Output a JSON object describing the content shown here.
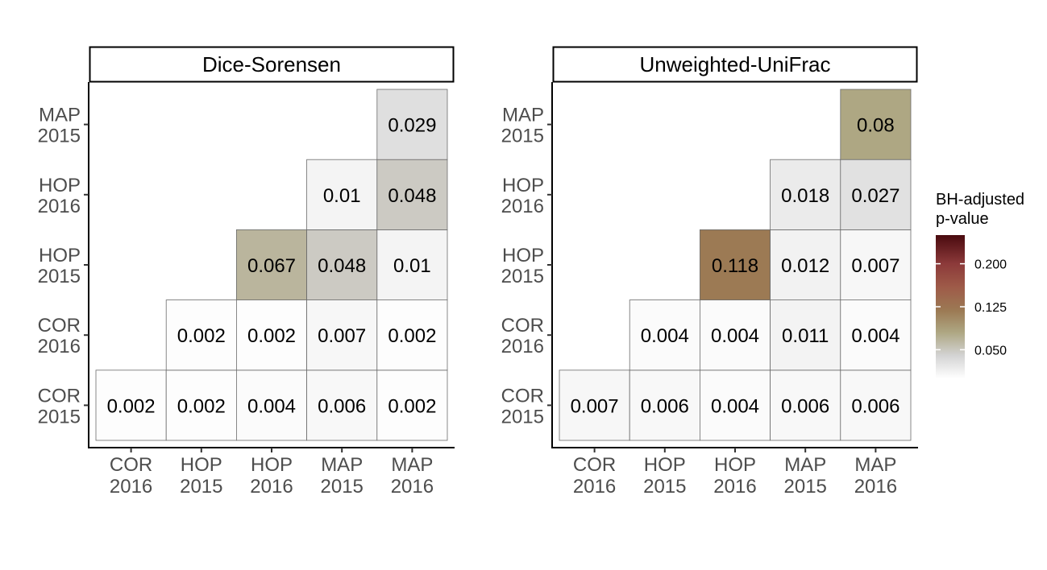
{
  "chart_data": {
    "type": "heatmap",
    "x_categories": [
      [
        "COR",
        "2016"
      ],
      [
        "HOP",
        "2015"
      ],
      [
        "HOP",
        "2016"
      ],
      [
        "MAP",
        "2015"
      ],
      [
        "MAP",
        "2016"
      ]
    ],
    "y_categories": [
      [
        "COR",
        "2015"
      ],
      [
        "COR",
        "2016"
      ],
      [
        "HOP",
        "2015"
      ],
      [
        "HOP",
        "2016"
      ],
      [
        "MAP",
        "2015"
      ]
    ],
    "panels": [
      {
        "title": "Dice-Sorensen",
        "cells": [
          {
            "x": 0,
            "y": 0,
            "value": 0.002
          },
          {
            "x": 1,
            "y": 0,
            "value": 0.002
          },
          {
            "x": 2,
            "y": 0,
            "value": 0.004
          },
          {
            "x": 3,
            "y": 0,
            "value": 0.006
          },
          {
            "x": 4,
            "y": 0,
            "value": 0.002
          },
          {
            "x": 1,
            "y": 1,
            "value": 0.002
          },
          {
            "x": 2,
            "y": 1,
            "value": 0.002
          },
          {
            "x": 3,
            "y": 1,
            "value": 0.007
          },
          {
            "x": 4,
            "y": 1,
            "value": 0.002
          },
          {
            "x": 2,
            "y": 2,
            "value": 0.067
          },
          {
            "x": 3,
            "y": 2,
            "value": 0.048
          },
          {
            "x": 4,
            "y": 2,
            "value": 0.01
          },
          {
            "x": 3,
            "y": 3,
            "value": 0.01
          },
          {
            "x": 4,
            "y": 3,
            "value": 0.048
          },
          {
            "x": 4,
            "y": 4,
            "value": 0.029
          }
        ]
      },
      {
        "title": "Unweighted-UniFrac",
        "cells": [
          {
            "x": 0,
            "y": 0,
            "value": 0.007
          },
          {
            "x": 1,
            "y": 0,
            "value": 0.006
          },
          {
            "x": 2,
            "y": 0,
            "value": 0.004
          },
          {
            "x": 3,
            "y": 0,
            "value": 0.006
          },
          {
            "x": 4,
            "y": 0,
            "value": 0.006
          },
          {
            "x": 1,
            "y": 1,
            "value": 0.004
          },
          {
            "x": 2,
            "y": 1,
            "value": 0.004
          },
          {
            "x": 3,
            "y": 1,
            "value": 0.011
          },
          {
            "x": 4,
            "y": 1,
            "value": 0.004
          },
          {
            "x": 2,
            "y": 2,
            "value": 0.118
          },
          {
            "x": 3,
            "y": 2,
            "value": 0.012
          },
          {
            "x": 4,
            "y": 2,
            "value": 0.007
          },
          {
            "x": 3,
            "y": 3,
            "value": 0.018
          },
          {
            "x": 4,
            "y": 3,
            "value": 0.027
          },
          {
            "x": 4,
            "y": 4,
            "value": 0.08
          }
        ]
      }
    ],
    "legend": {
      "title_lines": [
        "BH-adjusted",
        "p-value"
      ],
      "ticks": [
        {
          "value": 0.05,
          "label": "0.050"
        },
        {
          "value": 0.125,
          "label": "0.125"
        },
        {
          "value": 0.2,
          "label": "0.200"
        }
      ],
      "domain": [
        0.0,
        0.25
      ],
      "placement": "right",
      "color_stops": [
        {
          "value": 0.0,
          "color": "#ffffff"
        },
        {
          "value": 0.04,
          "color": "#d3d3d3"
        },
        {
          "value": 0.08,
          "color": "#aea783"
        },
        {
          "value": 0.118,
          "color": "#9c7a54"
        },
        {
          "value": 0.16,
          "color": "#9e5a48"
        },
        {
          "value": 0.2,
          "color": "#8c3a3a"
        },
        {
          "value": 0.25,
          "color": "#4a0a0f"
        }
      ]
    },
    "grid": false
  }
}
